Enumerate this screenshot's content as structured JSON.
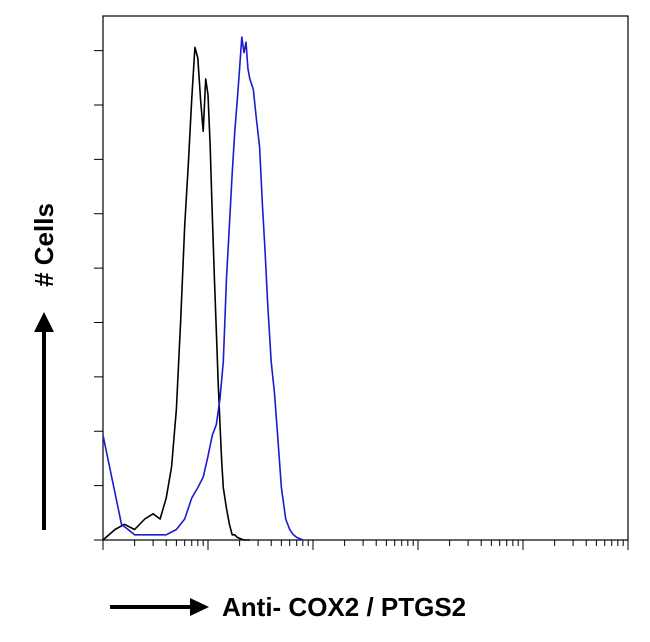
{
  "chart_data": {
    "type": "histogram",
    "xlabel": "Anti- COX2 / PTGS2",
    "ylabel": "# Cells",
    "x_scale": "log",
    "xlim": [
      1,
      100000
    ],
    "ylim": [
      0,
      100
    ],
    "grid": false,
    "legend": "none",
    "series": [
      {
        "color": "#000000",
        "x": [
          1,
          1.3,
          1.6,
          2,
          2.5,
          3,
          3.5,
          4,
          4.5,
          5,
          5.5,
          6,
          6.5,
          7,
          7.5,
          8,
          8.5,
          9,
          9.5,
          10,
          10.5,
          11,
          11.5,
          12,
          12.5,
          13,
          13.5,
          14,
          15,
          16,
          17,
          18,
          19,
          20,
          22,
          25
        ],
        "y": [
          0,
          2,
          3,
          2,
          4,
          5,
          4,
          8,
          14,
          25,
          42,
          60,
          72,
          84,
          94,
          92,
          84,
          78,
          88,
          85,
          75,
          62,
          50,
          40,
          30,
          22,
          15,
          10,
          6,
          3,
          1,
          1,
          0.5,
          0.3,
          0,
          0
        ]
      },
      {
        "color": "#1c1ccc",
        "x": [
          1,
          1.5,
          2,
          3,
          4,
          5,
          6,
          7,
          8,
          9,
          10,
          11,
          12,
          13,
          14,
          15,
          16,
          17,
          18,
          19,
          20,
          21,
          22,
          23,
          24,
          25,
          27,
          29,
          31,
          33,
          35,
          37,
          40,
          43,
          46,
          50,
          55,
          60,
          65,
          70,
          80
        ],
        "y": [
          20,
          3,
          1,
          1,
          1,
          2,
          4,
          8,
          10,
          12,
          16,
          20,
          22,
          27,
          34,
          50,
          60,
          70,
          78,
          84,
          90,
          96,
          93,
          95,
          90,
          88,
          86,
          80,
          75,
          64,
          55,
          45,
          34,
          28,
          20,
          10,
          4,
          2,
          1,
          0.5,
          0
        ]
      }
    ]
  }
}
